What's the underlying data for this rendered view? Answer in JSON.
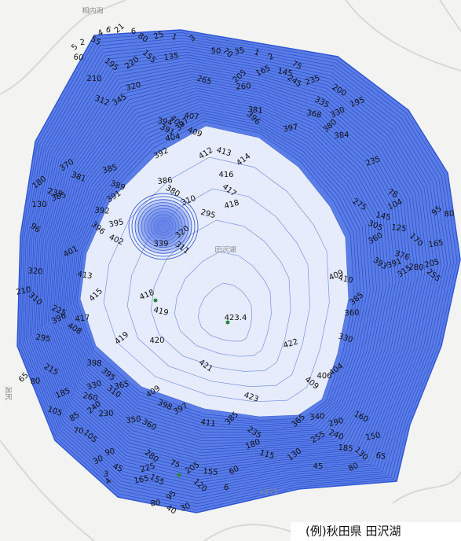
{
  "caption": "(例)秋田県 田沢湖",
  "place_labels": [
    "相内潟",
    "田沢湖",
    "潟尻",
    "373"
  ],
  "peak_label": "423.4",
  "contour_labels": [
    "5",
    "2",
    "55",
    "4",
    "6",
    "21",
    "6",
    "80",
    "25",
    "1",
    "3",
    "50",
    "70",
    "35",
    "1",
    "2",
    "60",
    "155",
    "135",
    "75",
    "165",
    "145",
    "205",
    "260",
    "245",
    "235",
    "265",
    "220",
    "210",
    "195",
    "320",
    "312",
    "345",
    "381",
    "396",
    "397",
    "335",
    "330",
    "368",
    "380",
    "384",
    "200",
    "195",
    "413",
    "414",
    "416",
    "417",
    "418",
    "409",
    "412",
    "407",
    "403",
    "404",
    "391",
    "392",
    "394",
    "397",
    "386",
    "380",
    "310",
    "295",
    "320",
    "339",
    "311",
    "385",
    "389",
    "391",
    "392",
    "396",
    "395",
    "402",
    "401",
    "413",
    "415",
    "417",
    "408",
    "418",
    "419",
    "419",
    "420",
    "421",
    "422",
    "423",
    "409",
    "398",
    "395",
    "365",
    "398",
    "397",
    "411",
    "385",
    "350",
    "360",
    "409",
    "410",
    "385",
    "360",
    "393",
    "391",
    "376",
    "315",
    "280",
    "255",
    "205",
    "305",
    "360",
    "125",
    "170",
    "165",
    "78",
    "104",
    "145",
    "95",
    "80",
    "275",
    "235",
    "330",
    "404",
    "406",
    "409",
    "290",
    "240",
    "255",
    "185",
    "130",
    "150",
    "160",
    "80",
    "65",
    "365",
    "340",
    "235",
    "180",
    "115",
    "130",
    "45",
    "280",
    "225",
    "75",
    "205",
    "155",
    "120",
    "165",
    "155",
    "60",
    "6",
    "95",
    "80",
    "40",
    "30",
    "235",
    "180",
    "130",
    "96",
    "305",
    "381",
    "370",
    "320",
    "310",
    "210",
    "225",
    "396",
    "295",
    "65",
    "80",
    "215",
    "185",
    "260",
    "240",
    "230",
    "310",
    "330",
    "105",
    "85",
    "70",
    "105",
    "90",
    "45",
    "30",
    "3",
    "4"
  ]
}
